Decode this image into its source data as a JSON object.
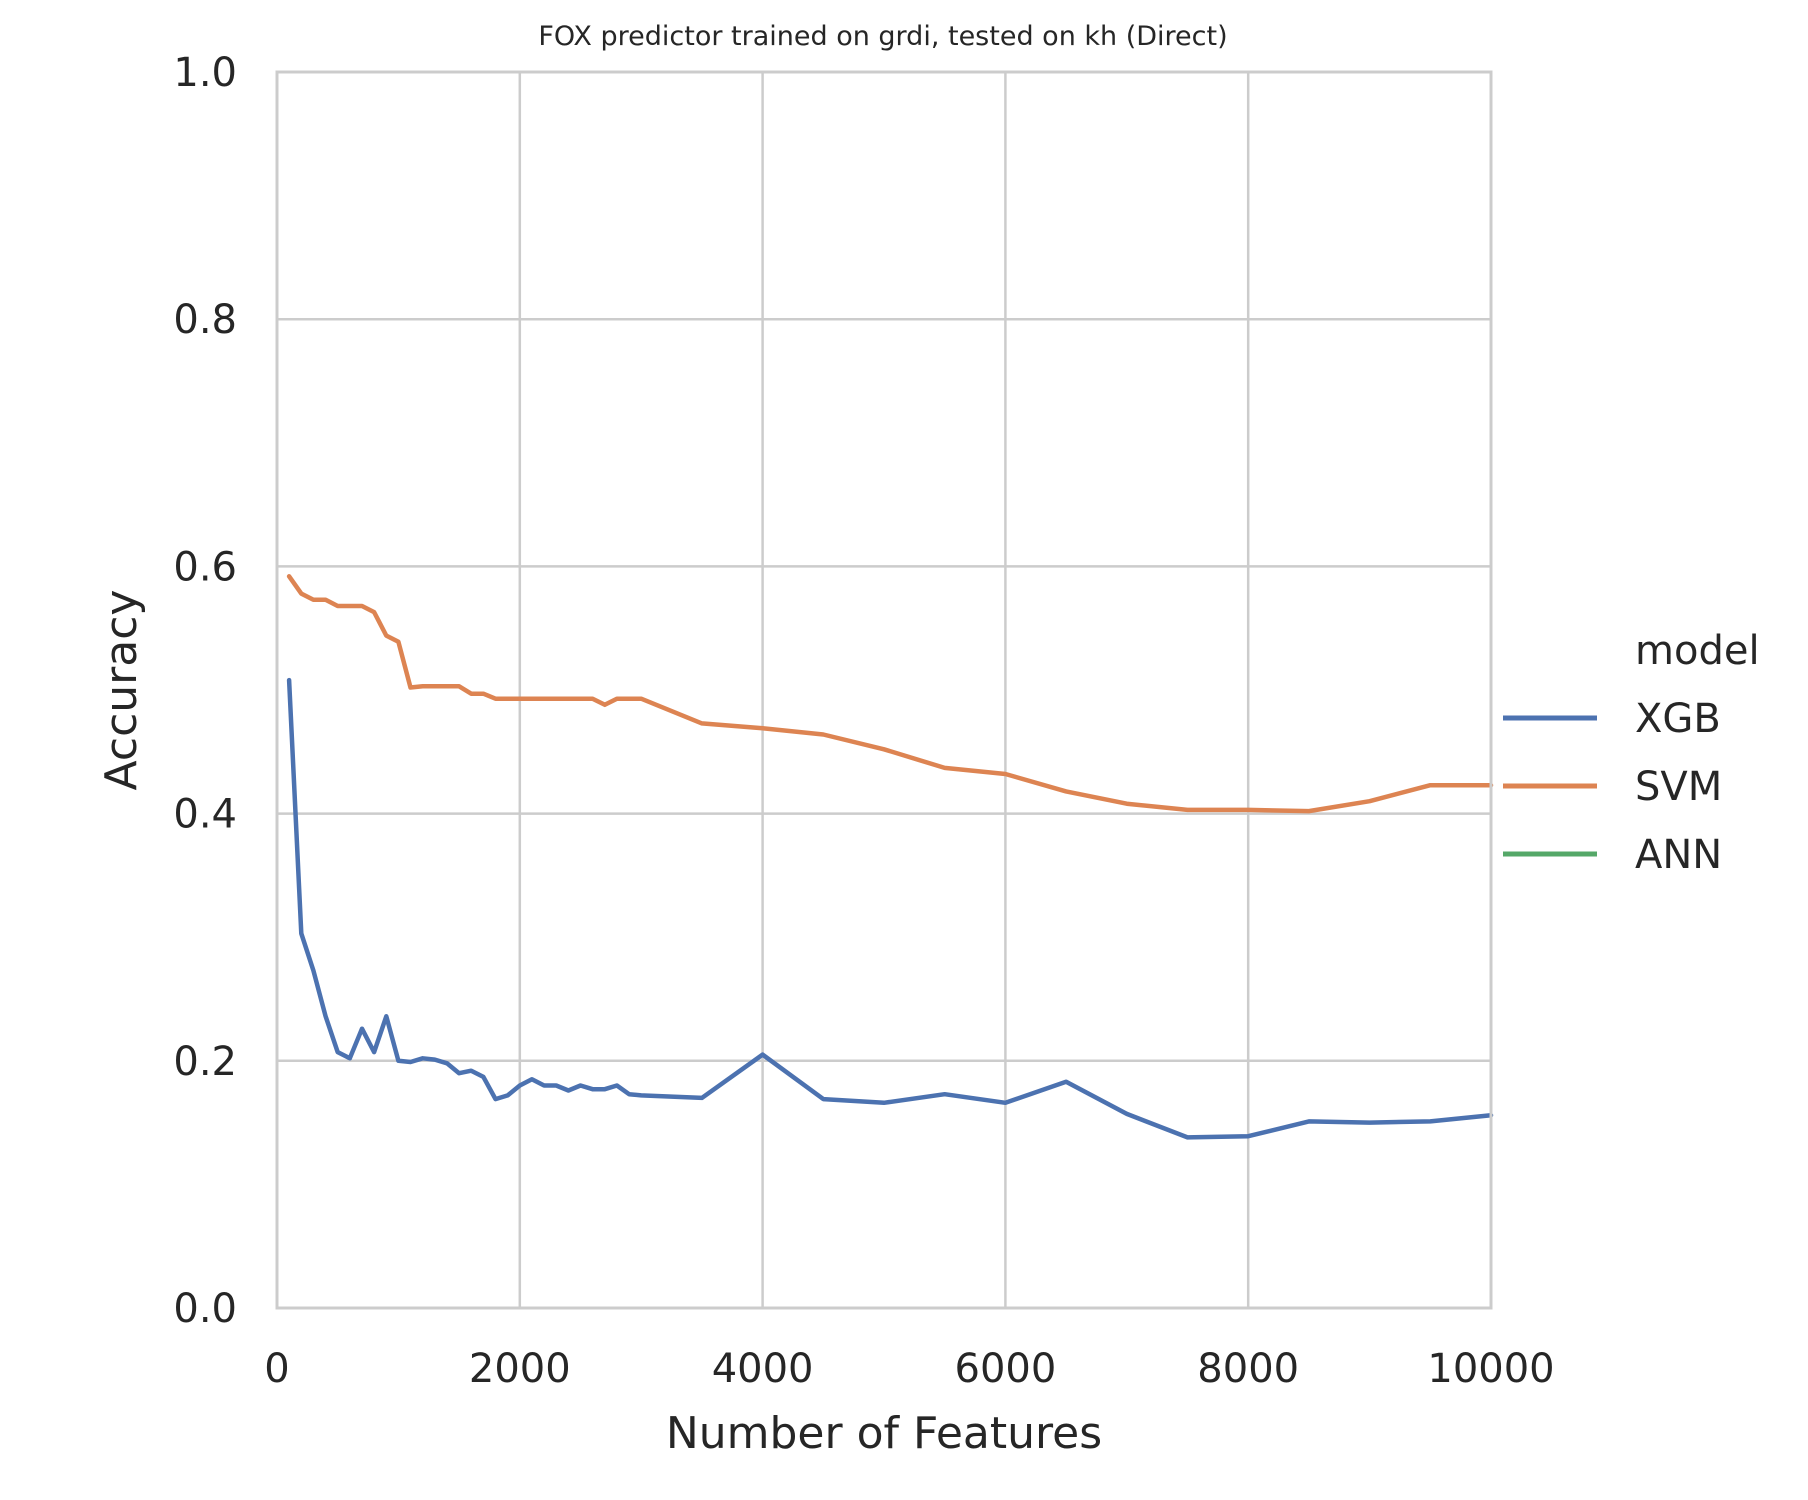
{
  "chart_data": {
    "type": "line",
    "title": "FOX predictor trained on grdi, tested on kh (Direct)",
    "xlabel": "Number of Features",
    "ylabel": "Accuracy",
    "xlim": [
      0,
      10000
    ],
    "ylim": [
      0,
      1.0
    ],
    "xticks": [
      0,
      2000,
      4000,
      6000,
      8000,
      10000
    ],
    "xtick_labels": [
      "0",
      "2000",
      "4000",
      "6000",
      "8000",
      "10000"
    ],
    "yticks": [
      0.0,
      0.2,
      0.4,
      0.6,
      0.8,
      1.0
    ],
    "ytick_labels": [
      "0.0",
      "0.2",
      "0.4",
      "0.6",
      "0.8",
      "1.0"
    ],
    "grid": true,
    "legend": {
      "title": "model",
      "placement": "right-outside"
    },
    "series": [
      {
        "name": "XGB",
        "color": "#4c72b0",
        "x": [
          100,
          200,
          300,
          400,
          500,
          600,
          700,
          800,
          900,
          1000,
          1100,
          1200,
          1300,
          1400,
          1500,
          1600,
          1700,
          1800,
          1900,
          2000,
          2100,
          2200,
          2300,
          2400,
          2500,
          2600,
          2700,
          2800,
          2900,
          3000,
          3500,
          4000,
          4500,
          5000,
          5500,
          6000,
          6500,
          7000,
          7500,
          8000,
          8500,
          9000,
          9500,
          10000
        ],
        "y": [
          0.508,
          0.303,
          0.273,
          0.236,
          0.207,
          0.202,
          0.226,
          0.207,
          0.236,
          0.2,
          0.199,
          0.202,
          0.201,
          0.198,
          0.19,
          0.192,
          0.187,
          0.169,
          0.172,
          0.18,
          0.185,
          0.18,
          0.18,
          0.176,
          0.18,
          0.177,
          0.177,
          0.18,
          0.173,
          0.172,
          0.17,
          0.205,
          0.169,
          0.166,
          0.173,
          0.166,
          0.183,
          0.157,
          0.138,
          0.139,
          0.151,
          0.15,
          0.151,
          0.156
        ]
      },
      {
        "name": "SVM",
        "color": "#dd8452",
        "x": [
          100,
          200,
          300,
          400,
          500,
          600,
          700,
          800,
          900,
          1000,
          1100,
          1200,
          1300,
          1400,
          1500,
          1600,
          1700,
          1800,
          1900,
          2000,
          2100,
          2200,
          2300,
          2400,
          2500,
          2600,
          2700,
          2800,
          2900,
          3000,
          3500,
          4000,
          4500,
          5000,
          5500,
          6000,
          6500,
          7000,
          7500,
          8000,
          8500,
          9000,
          9500,
          10000
        ],
        "y": [
          0.592,
          0.578,
          0.573,
          0.573,
          0.568,
          0.568,
          0.568,
          0.563,
          0.544,
          0.539,
          0.502,
          0.503,
          0.503,
          0.503,
          0.503,
          0.497,
          0.497,
          0.493,
          0.493,
          0.493,
          0.493,
          0.493,
          0.493,
          0.493,
          0.493,
          0.493,
          0.488,
          0.493,
          0.493,
          0.493,
          0.473,
          0.469,
          0.464,
          0.452,
          0.437,
          0.432,
          0.418,
          0.408,
          0.403,
          0.403,
          0.402,
          0.41,
          0.423,
          0.423
        ]
      },
      {
        "name": "ANN",
        "color": "#55a868",
        "x": [],
        "y": []
      }
    ]
  }
}
